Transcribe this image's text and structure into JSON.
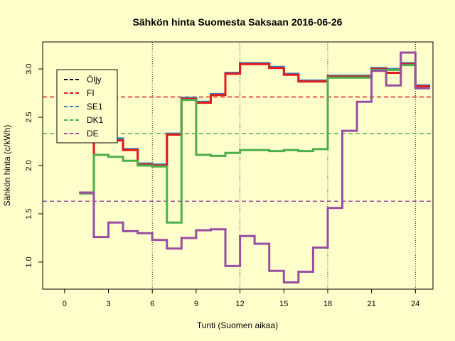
{
  "chart_data": {
    "type": "line",
    "title": "Sähkön hinta Suomesta Saksaan 2016-06-26",
    "xlabel": "Tunti (Suomen aikaa)",
    "ylabel": "Sähkön hinta (c/kWh)",
    "xlim": [
      -1.5,
      25.2
    ],
    "ylim": [
      0.72,
      3.28
    ],
    "x_ticks": [
      0,
      3,
      6,
      9,
      12,
      15,
      18,
      21,
      24
    ],
    "y_ticks": [
      1.0,
      1.5,
      2.0,
      2.5,
      3.0
    ],
    "y_tick_labels": [
      "1.0",
      "1.5",
      "2.0",
      "2.5",
      "3.0"
    ],
    "vlines": [
      6,
      12,
      18,
      24
    ],
    "legend_position": "top-left",
    "legend": [
      {
        "name": "Öljy",
        "color": "#000000"
      },
      {
        "name": "FI",
        "color": "#e41a1c"
      },
      {
        "name": "SE1",
        "color": "#377eb8"
      },
      {
        "name": "DK1",
        "color": "#4daf4a"
      },
      {
        "name": "DE",
        "color": "#984ea3"
      }
    ],
    "hlines": [
      {
        "name": "FI",
        "value": 2.71,
        "color": "#e41a1c"
      },
      {
        "name": "DK1",
        "value": 2.33,
        "color": "#4daf4a"
      },
      {
        "name": "DE",
        "value": 1.63,
        "color": "#984ea3"
      }
    ],
    "x_start": 1,
    "x_end": 25,
    "series": [
      {
        "name": "SE1",
        "color": "#377eb8",
        "values": [
          1.72,
          2.42,
          2.28,
          2.17,
          2.02,
          2.01,
          2.33,
          2.7,
          2.66,
          2.74,
          2.96,
          3.06,
          3.06,
          3.02,
          2.95,
          2.88,
          2.88,
          2.93,
          2.93,
          2.93,
          3.01,
          3.0,
          3.06,
          2.83
        ]
      },
      {
        "name": "FI",
        "color": "#e41a1c",
        "values": [
          1.72,
          2.42,
          2.26,
          2.16,
          2.01,
          2.0,
          2.32,
          2.69,
          2.65,
          2.73,
          2.95,
          3.05,
          3.05,
          3.01,
          2.94,
          2.87,
          2.87,
          2.92,
          2.92,
          2.92,
          3.0,
          2.96,
          3.05,
          2.82
        ]
      },
      {
        "name": "DK1",
        "color": "#4daf4a",
        "values": [
          1.71,
          2.11,
          2.09,
          2.05,
          2.0,
          1.99,
          1.41,
          2.68,
          2.11,
          2.1,
          2.13,
          2.16,
          2.16,
          2.15,
          2.16,
          2.15,
          2.17,
          2.91,
          2.91,
          2.91,
          2.99,
          2.99,
          3.04,
          2.8
        ]
      },
      {
        "name": "DE",
        "color": "#984ea3",
        "values": [
          1.72,
          1.26,
          1.41,
          1.32,
          1.3,
          1.23,
          1.14,
          1.25,
          1.33,
          1.34,
          0.96,
          1.27,
          1.19,
          0.91,
          0.79,
          0.9,
          1.15,
          1.56,
          2.36,
          2.66,
          2.98,
          2.83,
          3.17,
          2.8
        ]
      }
    ]
  }
}
